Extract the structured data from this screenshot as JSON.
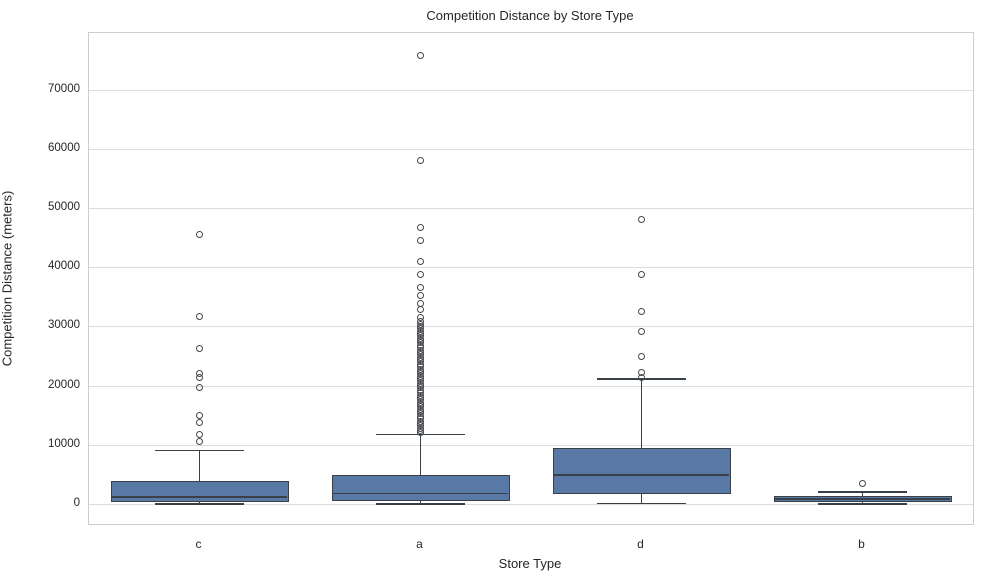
{
  "chart_data": {
    "type": "box",
    "title": "Competition Distance by Store Type",
    "xlabel": "Store Type",
    "ylabel": "Competition Distance (meters)",
    "categories": [
      "c",
      "a",
      "d",
      "b"
    ],
    "yticks": [
      0,
      10000,
      20000,
      30000,
      40000,
      50000,
      60000,
      70000
    ],
    "ylim": [
      -3400,
      79600
    ],
    "grid": "horizontal",
    "legend": "none",
    "box_fill_color": "#5878a6",
    "box_edge_color": "#3a4048",
    "flier_color": "#44494f",
    "grid_color": "#dcdcdc",
    "axes_border_color": "#cdcdcd",
    "text_color": "#262626",
    "boxes": [
      {
        "category": "c",
        "whisker_low": 20,
        "q1": 250,
        "median": 1200,
        "q3": 3900,
        "whisker_high": 9000,
        "outliers": [
          10600,
          11700,
          13700,
          15000,
          19700,
          21400,
          22000,
          26200,
          31700,
          45600
        ]
      },
      {
        "category": "a",
        "whisker_low": 20,
        "q1": 500,
        "median": 1750,
        "q3": 4900,
        "whisker_high": 11700,
        "outliers": [
          12000,
          12400,
          12800,
          13200,
          13600,
          14000,
          14400,
          14800,
          15200,
          15600,
          16000,
          16400,
          16800,
          17200,
          17600,
          18000,
          18400,
          18800,
          19200,
          19600,
          20000,
          20400,
          20800,
          21200,
          21600,
          22000,
          22400,
          22800,
          23200,
          23600,
          24000,
          24400,
          24800,
          25200,
          25600,
          26000,
          26400,
          26800,
          27200,
          27600,
          28000,
          28400,
          28800,
          29200,
          29600,
          30000,
          30400,
          30800,
          31500,
          32900,
          33900,
          35300,
          36600,
          38800,
          40900,
          44500,
          46700,
          58000,
          75860
        ]
      },
      {
        "category": "d",
        "whisker_low": 40,
        "q1": 1650,
        "median": 4850,
        "q3": 9500,
        "whisker_high": 21100,
        "outliers": [
          21300,
          22200,
          24900,
          29100,
          32600,
          38700,
          48100
        ]
      },
      {
        "category": "b",
        "whisker_low": 20,
        "q1": 250,
        "median": 800,
        "q3": 1250,
        "whisker_high": 2000,
        "outliers": [
          3450
        ]
      }
    ]
  }
}
